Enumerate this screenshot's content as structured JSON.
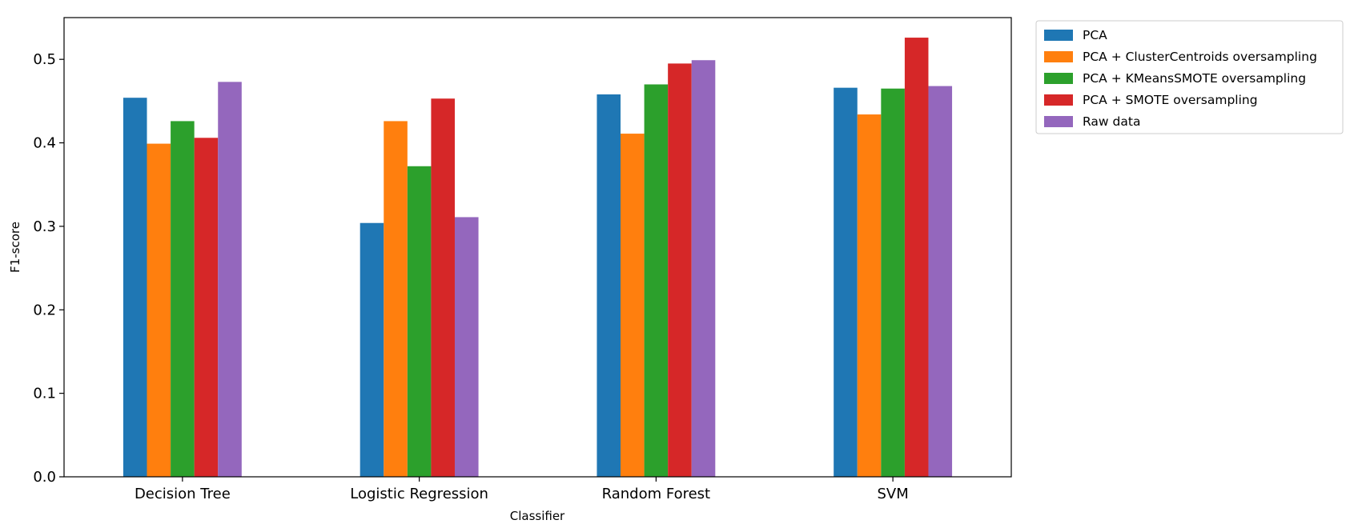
{
  "chart_data": {
    "type": "bar",
    "title": "",
    "xlabel": "Classifier",
    "ylabel": "F1-score",
    "categories": [
      "Decision Tree",
      "Logistic Regression",
      "Random Forest",
      "SVM"
    ],
    "ylim": [
      0,
      0.55
    ],
    "yticks": [
      "0.0",
      "0.1",
      "0.2",
      "0.3",
      "0.4",
      "0.5"
    ],
    "grid": false,
    "legend_position": "outside-top-right",
    "series": [
      {
        "name": "PCA",
        "color": "#1f77b4",
        "values": [
          0.454,
          0.304,
          0.458,
          0.466
        ]
      },
      {
        "name": "PCA + ClusterCentroids oversampling",
        "color": "#ff7f0e",
        "values": [
          0.399,
          0.426,
          0.411,
          0.434
        ]
      },
      {
        "name": "PCA + KMeansSMOTE oversampling",
        "color": "#2ca02c",
        "values": [
          0.426,
          0.372,
          0.47,
          0.465
        ]
      },
      {
        "name": "PCA + SMOTE oversampling",
        "color": "#d62728",
        "values": [
          0.406,
          0.453,
          0.495,
          0.526
        ]
      },
      {
        "name": "Raw data",
        "color": "#9467bd",
        "values": [
          0.473,
          0.311,
          0.499,
          0.468
        ]
      }
    ]
  }
}
